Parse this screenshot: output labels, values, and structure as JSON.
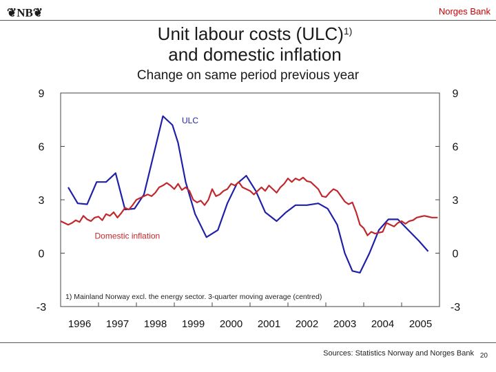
{
  "header": {
    "logo_text": "❦NB❦",
    "bank_name": "Norges Bank",
    "bank_color": "#cc0000"
  },
  "footer": {
    "sources": "Sources: Statistics Norway and Norges Bank",
    "page_number": "20"
  },
  "chart_data": {
    "type": "line",
    "title": "Unit labour costs (ULC)",
    "title_superscript": "1)",
    "title_line2": "and domestic inflation",
    "subtitle": "Change on same period previous year",
    "xlabel": "",
    "ylabel": "",
    "xlim": [
      1996,
      2006
    ],
    "ylim": [
      -3,
      9
    ],
    "x_ticks": [
      "1996",
      "1997",
      "1998",
      "1999",
      "2000",
      "2001",
      "2002",
      "2003",
      "2004",
      "2005"
    ],
    "y_ticks": [
      "9",
      "6",
      "3",
      "0",
      "-3"
    ],
    "grid": false,
    "footnote": "1) Mainland Norway excl. the energy sector. 3-quarter moving average (centred)",
    "series": [
      {
        "name": "ULC",
        "color": "#1f1fa8",
        "points": [
          [
            1996.2,
            3.7
          ],
          [
            1996.45,
            2.8
          ],
          [
            1996.7,
            2.75
          ],
          [
            1996.95,
            4.0
          ],
          [
            1997.2,
            4.0
          ],
          [
            1997.45,
            4.5
          ],
          [
            1997.7,
            2.45
          ],
          [
            1997.95,
            2.5
          ],
          [
            1998.2,
            3.3
          ],
          [
            1998.45,
            5.5
          ],
          [
            1998.7,
            7.7
          ],
          [
            1998.95,
            7.2
          ],
          [
            1999.1,
            6.2
          ],
          [
            1999.3,
            4.0
          ],
          [
            1999.55,
            2.2
          ],
          [
            1999.85,
            0.9
          ],
          [
            2000.15,
            1.3
          ],
          [
            2000.4,
            2.8
          ],
          [
            2000.65,
            3.9
          ],
          [
            2000.9,
            4.35
          ],
          [
            2001.15,
            3.5
          ],
          [
            2001.4,
            2.3
          ],
          [
            2001.7,
            1.8
          ],
          [
            2001.95,
            2.3
          ],
          [
            2002.2,
            2.7
          ],
          [
            2002.5,
            2.7
          ],
          [
            2002.8,
            2.8
          ],
          [
            2003.05,
            2.5
          ],
          [
            2003.3,
            1.6
          ],
          [
            2003.5,
            0.0
          ],
          [
            2003.7,
            -1.0
          ],
          [
            2003.9,
            -1.1
          ],
          [
            2004.15,
            0.0
          ],
          [
            2004.4,
            1.3
          ],
          [
            2004.65,
            1.9
          ],
          [
            2004.9,
            1.9
          ],
          [
            2005.15,
            1.35
          ],
          [
            2005.45,
            0.7
          ],
          [
            2005.7,
            0.1
          ]
        ]
      },
      {
        "name": "Domestic inflation",
        "color": "#c0282d",
        "points": [
          [
            1996.0,
            1.8
          ],
          [
            1996.1,
            1.7
          ],
          [
            1996.2,
            1.6
          ],
          [
            1996.3,
            1.7
          ],
          [
            1996.4,
            1.85
          ],
          [
            1996.5,
            1.75
          ],
          [
            1996.6,
            2.1
          ],
          [
            1996.7,
            1.9
          ],
          [
            1996.8,
            1.8
          ],
          [
            1996.9,
            2.0
          ],
          [
            1997.0,
            2.05
          ],
          [
            1997.1,
            1.85
          ],
          [
            1997.2,
            2.2
          ],
          [
            1997.3,
            2.1
          ],
          [
            1997.4,
            2.3
          ],
          [
            1997.5,
            2.0
          ],
          [
            1997.6,
            2.25
          ],
          [
            1997.7,
            2.55
          ],
          [
            1997.8,
            2.45
          ],
          [
            1997.9,
            2.7
          ],
          [
            1998.0,
            3.0
          ],
          [
            1998.1,
            3.1
          ],
          [
            1998.2,
            3.2
          ],
          [
            1998.3,
            3.3
          ],
          [
            1998.4,
            3.2
          ],
          [
            1998.5,
            3.4
          ],
          [
            1998.6,
            3.7
          ],
          [
            1998.7,
            3.8
          ],
          [
            1998.8,
            3.95
          ],
          [
            1998.9,
            3.8
          ],
          [
            1999.0,
            3.6
          ],
          [
            1999.1,
            3.9
          ],
          [
            1999.2,
            3.55
          ],
          [
            1999.3,
            3.7
          ],
          [
            1999.4,
            3.5
          ],
          [
            1999.5,
            3.0
          ],
          [
            1999.6,
            2.85
          ],
          [
            1999.7,
            2.95
          ],
          [
            1999.8,
            2.7
          ],
          [
            1999.9,
            3.0
          ],
          [
            2000.0,
            3.6
          ],
          [
            2000.1,
            3.2
          ],
          [
            2000.2,
            3.3
          ],
          [
            2000.3,
            3.5
          ],
          [
            2000.4,
            3.6
          ],
          [
            2000.5,
            3.9
          ],
          [
            2000.6,
            3.8
          ],
          [
            2000.7,
            4.0
          ],
          [
            2000.8,
            3.7
          ],
          [
            2000.9,
            3.6
          ],
          [
            2001.0,
            3.5
          ],
          [
            2001.1,
            3.3
          ],
          [
            2001.2,
            3.5
          ],
          [
            2001.3,
            3.7
          ],
          [
            2001.4,
            3.5
          ],
          [
            2001.5,
            3.8
          ],
          [
            2001.6,
            3.6
          ],
          [
            2001.7,
            3.4
          ],
          [
            2001.8,
            3.7
          ],
          [
            2001.9,
            3.9
          ],
          [
            2002.0,
            4.2
          ],
          [
            2002.1,
            4.0
          ],
          [
            2002.2,
            4.2
          ],
          [
            2002.3,
            4.1
          ],
          [
            2002.4,
            4.25
          ],
          [
            2002.5,
            4.05
          ],
          [
            2002.6,
            4.0
          ],
          [
            2002.7,
            3.8
          ],
          [
            2002.8,
            3.6
          ],
          [
            2002.9,
            3.2
          ],
          [
            2003.0,
            3.15
          ],
          [
            2003.1,
            3.4
          ],
          [
            2003.2,
            3.6
          ],
          [
            2003.3,
            3.5
          ],
          [
            2003.4,
            3.2
          ],
          [
            2003.5,
            2.9
          ],
          [
            2003.6,
            2.75
          ],
          [
            2003.7,
            2.85
          ],
          [
            2003.8,
            2.3
          ],
          [
            2003.9,
            1.6
          ],
          [
            2004.0,
            1.4
          ],
          [
            2004.1,
            1.0
          ],
          [
            2004.2,
            1.2
          ],
          [
            2004.3,
            1.1
          ],
          [
            2004.4,
            1.15
          ],
          [
            2004.5,
            1.2
          ],
          [
            2004.6,
            1.7
          ],
          [
            2004.7,
            1.6
          ],
          [
            2004.8,
            1.5
          ],
          [
            2004.9,
            1.7
          ],
          [
            2005.0,
            1.8
          ],
          [
            2005.1,
            1.65
          ],
          [
            2005.2,
            1.8
          ],
          [
            2005.3,
            1.85
          ],
          [
            2005.4,
            2.0
          ],
          [
            2005.5,
            2.05
          ],
          [
            2005.6,
            2.1
          ],
          [
            2005.7,
            2.05
          ],
          [
            2005.8,
            2.0
          ],
          [
            2005.95,
            2.0
          ]
        ]
      }
    ],
    "annotations": [
      {
        "text": "ULC",
        "series": "ULC",
        "x": 1999.2,
        "y": 7.5
      },
      {
        "text": "Domestic inflation",
        "series": "Domestic inflation",
        "x": 1996.9,
        "y": 1.0
      }
    ]
  }
}
